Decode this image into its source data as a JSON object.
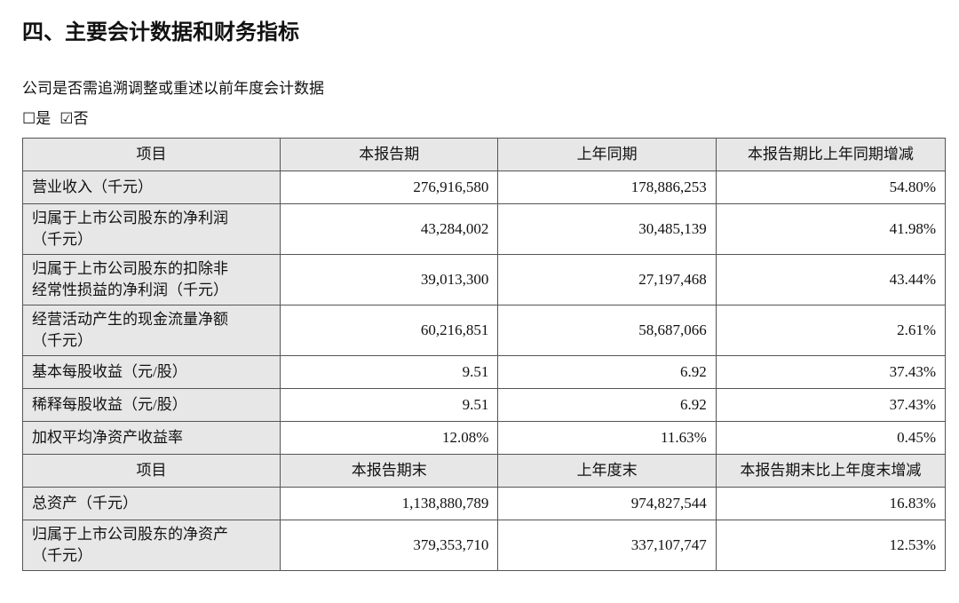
{
  "heading": "四、主要会计数据和财务指标",
  "question": "公司是否需追溯调整或重述以前年度会计数据",
  "options": [
    "☐是",
    "☑否"
  ],
  "table": {
    "sections": [
      {
        "header": [
          "项目",
          "本报告期",
          "上年同期",
          "本报告期比上年同期增减"
        ],
        "rows": [
          [
            "营业收入（千元）",
            "276,916,580",
            "178,886,253",
            "54.80%"
          ],
          [
            "归属于上市公司股东的净利润（千元）",
            "43,284,002",
            "30,485,139",
            "41.98%"
          ],
          [
            "归属于上市公司股东的扣除非经常性损益的净利润（千元）",
            "39,013,300",
            "27,197,468",
            "43.44%"
          ],
          [
            "经营活动产生的现金流量净额（千元）",
            "60,216,851",
            "58,687,066",
            "2.61%"
          ],
          [
            "基本每股收益（元/股）",
            "9.51",
            "6.92",
            "37.43%"
          ],
          [
            "稀释每股收益（元/股）",
            "9.51",
            "6.92",
            "37.43%"
          ],
          [
            "加权平均净资产收益率",
            "12.08%",
            "11.63%",
            "0.45%"
          ]
        ]
      },
      {
        "header": [
          "项目",
          "本报告期末",
          "上年度末",
          "本报告期末比上年度末增减"
        ],
        "rows": [
          [
            "总资产（千元）",
            "1,138,880,789",
            "974,827,544",
            "16.83%"
          ],
          [
            "归属于上市公司股东的净资产（千元）",
            "379,353,710",
            "337,107,747",
            "12.53%"
          ]
        ]
      }
    ]
  }
}
